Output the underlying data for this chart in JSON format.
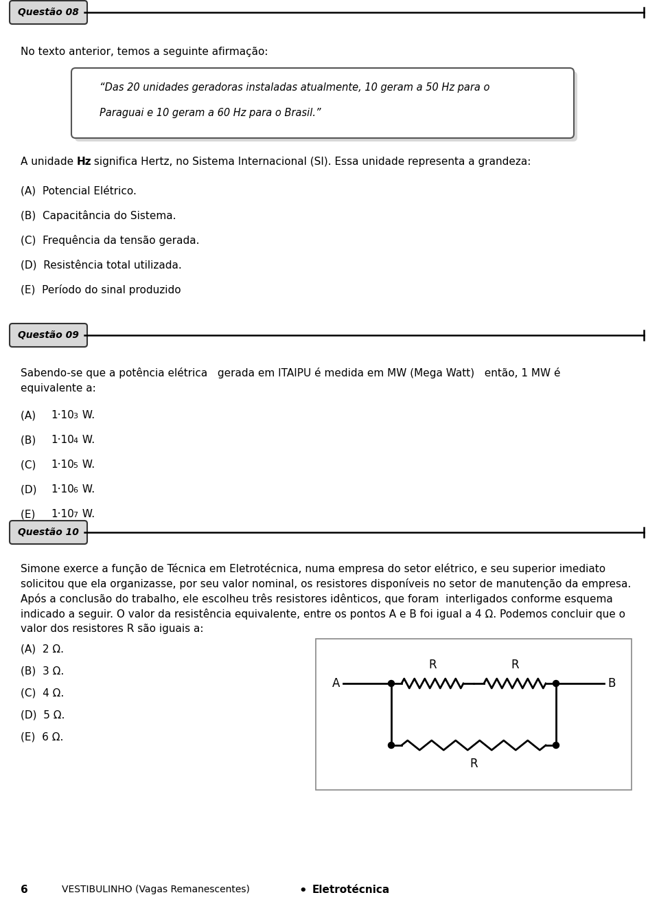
{
  "bg_color": "#ffffff",
  "text_color": "#000000",
  "page_number": "6",
  "footer_left": "VESTIBULINHO (Vagas Remanescentes)",
  "footer_right": "Eletrotécnica",
  "q8_label": "Questão 08",
  "q8_intro": "No texto anterior, temos a seguinte afirmação:",
  "q8_quote_line1": "“Das 20 unidades geradoras instaladas atualmente, 10 geram a 50 Hz para o",
  "q8_quote_line2": "Paraguai e 10 geram a 60 Hz para o Brasil.”",
  "q8_body_pre": "A unidade ",
  "q8_body_bold": "Hz",
  "q8_body_post": " significa Hertz, no Sistema Internacional (SI). Essa unidade representa a grandeza:",
  "q8_options": [
    "(A)  Potencial Elétrico.",
    "(B)  Capacitância do Sistema.",
    "(C)  Frequência da tensão gerada.",
    "(D)  Resistência total utilizada.",
    "(E)  Período do sinal produzido"
  ],
  "q9_label": "Questão 09",
  "q9_body_line1": "Sabendo-se que a potência elétrica   gerada em ITAIPU é medida em MW (Mega Watt)   então, 1 MW é",
  "q9_body_line2": "equivalente a:",
  "q9_options_base": [
    "(A)  ",
    "(B)  ",
    "(C)  ",
    "(D)  ",
    "(E)  "
  ],
  "q9_options_main": [
    "1·10",
    "1·10",
    "1·10",
    "1·10",
    "1·10"
  ],
  "q9_options_exp": [
    "3",
    "4",
    "5",
    "6",
    "7"
  ],
  "q9_options_suffix": [
    " W.",
    " W.",
    " W.",
    " W.",
    " W."
  ],
  "q10_label": "Questão 10",
  "q10_body_line1": "Simone exerce a função de Técnica em Eletrotécnica, numa empresa do setor elétrico, e seu superior imediato",
  "q10_body_line2": "solicitou que ela organizasse, por seu valor nominal, os resistores disponíveis no setor de manutenção da empresa.",
  "q10_body_line3": "Após a conclusão do trabalho, ele escolheu três resistores idênticos, que foram  interligados conforme esquema",
  "q10_body_line4": "indicado a seguir. O valor da resistência equivalente, entre os pontos A e B foi igual a 4 Ω. Podemos concluir que o",
  "q10_body_line5": "valor dos resistores R são iguais a:",
  "q10_options": [
    "(A)  2 Ω.",
    "(B)  3 Ω.",
    "(C)  4 Ω.",
    "(D)  5 Ω.",
    "(E)  6 Ω."
  ]
}
